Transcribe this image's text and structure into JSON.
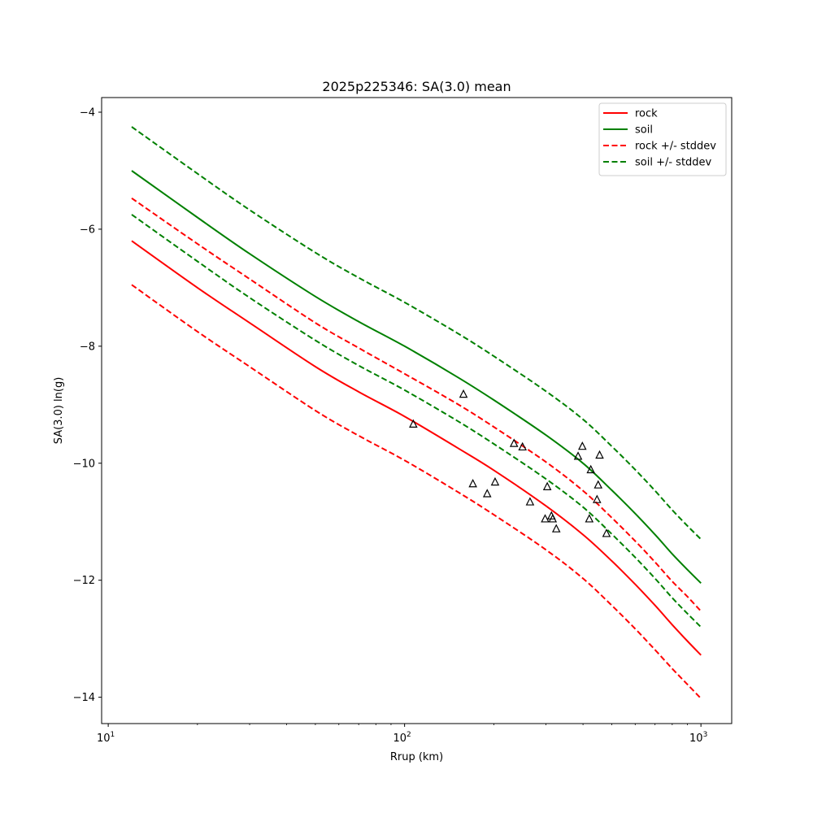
{
  "chart_data": {
    "type": "line",
    "title": "2025p225346: SA(3.0) mean",
    "xlabel": "Rrup (km)",
    "ylabel": "SA(3.0) ln(g)",
    "xscale": "log",
    "xlim": [
      9.5,
      1270
    ],
    "ylim": [
      -14.45,
      -3.75
    ],
    "xticks": [
      {
        "value": 10,
        "base": "10",
        "exp": "1"
      },
      {
        "value": 100,
        "base": "10",
        "exp": "2"
      },
      {
        "value": 1000,
        "base": "10",
        "exp": "3"
      }
    ],
    "yticks": [
      {
        "value": -4,
        "label": "−4"
      },
      {
        "value": -6,
        "label": "−6"
      },
      {
        "value": -8,
        "label": "−8"
      },
      {
        "value": -10,
        "label": "−10"
      },
      {
        "value": -12,
        "label": "−12"
      },
      {
        "value": -14,
        "label": "−14"
      }
    ],
    "grid": false,
    "legend_position": "top-right",
    "series": [
      {
        "name": "rock",
        "color": "#ff0000",
        "dash": "solid",
        "x": [
          12,
          20,
          30,
          50,
          70,
          100,
          150,
          200,
          300,
          400,
          500,
          600,
          700,
          800,
          900,
          1000
        ],
        "y": [
          -6.2,
          -7.0,
          -7.6,
          -8.35,
          -8.78,
          -9.2,
          -9.73,
          -10.12,
          -10.73,
          -11.22,
          -11.67,
          -12.07,
          -12.43,
          -12.76,
          -13.04,
          -13.28
        ]
      },
      {
        "name": "soil",
        "color": "#008000",
        "dash": "solid",
        "x": [
          12,
          20,
          30,
          50,
          70,
          100,
          150,
          200,
          300,
          400,
          500,
          600,
          700,
          800,
          900,
          1000
        ],
        "y": [
          -5.0,
          -5.8,
          -6.42,
          -7.15,
          -7.58,
          -8.0,
          -8.52,
          -8.92,
          -9.52,
          -10.0,
          -10.46,
          -10.86,
          -11.22,
          -11.55,
          -11.82,
          -12.05
        ]
      },
      {
        "name": "rock +/- stddev",
        "color": "#ff0000",
        "dash": "dashed",
        "x": [
          12,
          20,
          30,
          50,
          70,
          100,
          150,
          200,
          300,
          400,
          500,
          600,
          700,
          800,
          900,
          1000
        ],
        "y": [
          -5.47,
          -6.25,
          -6.85,
          -7.6,
          -8.03,
          -8.47,
          -8.98,
          -9.38,
          -9.98,
          -10.47,
          -10.93,
          -11.33,
          -11.69,
          -12.02,
          -12.28,
          -12.53
        ]
      },
      {
        "series_of": "rock +/- stddev",
        "color": "#ff0000",
        "dash": "dashed",
        "x": [
          12,
          20,
          30,
          50,
          70,
          100,
          150,
          200,
          300,
          400,
          500,
          600,
          700,
          800,
          900,
          1000
        ],
        "y": [
          -6.95,
          -7.75,
          -8.35,
          -9.1,
          -9.53,
          -9.95,
          -10.48,
          -10.88,
          -11.48,
          -11.97,
          -12.43,
          -12.83,
          -13.19,
          -13.51,
          -13.78,
          -14.02
        ]
      },
      {
        "name": "soil +/- stddev",
        "color": "#008000",
        "dash": "dashed",
        "x": [
          12,
          20,
          30,
          50,
          70,
          100,
          150,
          200,
          300,
          400,
          500,
          600,
          700,
          800,
          900,
          1000
        ],
        "y": [
          -4.25,
          -5.05,
          -5.67,
          -6.4,
          -6.83,
          -7.25,
          -7.77,
          -8.17,
          -8.77,
          -9.25,
          -9.71,
          -10.11,
          -10.47,
          -10.8,
          -11.07,
          -11.3
        ]
      },
      {
        "series_of": "soil +/- stddev",
        "color": "#008000",
        "dash": "dashed",
        "x": [
          12,
          20,
          30,
          50,
          70,
          100,
          150,
          200,
          300,
          400,
          500,
          600,
          700,
          800,
          900,
          1000
        ],
        "y": [
          -5.75,
          -6.55,
          -7.17,
          -7.9,
          -8.33,
          -8.75,
          -9.27,
          -9.67,
          -10.27,
          -10.75,
          -11.21,
          -11.61,
          -11.97,
          -12.3,
          -12.57,
          -12.8
        ]
      }
    ],
    "observations": {
      "marker": "triangle",
      "color": "#000000",
      "x": [
        107,
        158,
        170,
        190,
        202,
        234,
        250,
        265,
        298,
        303,
        313,
        316,
        325,
        385,
        398,
        420,
        425,
        446,
        450,
        455,
        480
      ],
      "y": [
        -9.33,
        -8.82,
        -10.35,
        -10.52,
        -10.32,
        -9.66,
        -9.72,
        -10.66,
        -10.95,
        -10.4,
        -10.9,
        -10.95,
        -11.12,
        -9.88,
        -9.71,
        -10.95,
        -10.11,
        -10.62,
        -10.37,
        -9.86,
        -11.2
      ]
    }
  }
}
